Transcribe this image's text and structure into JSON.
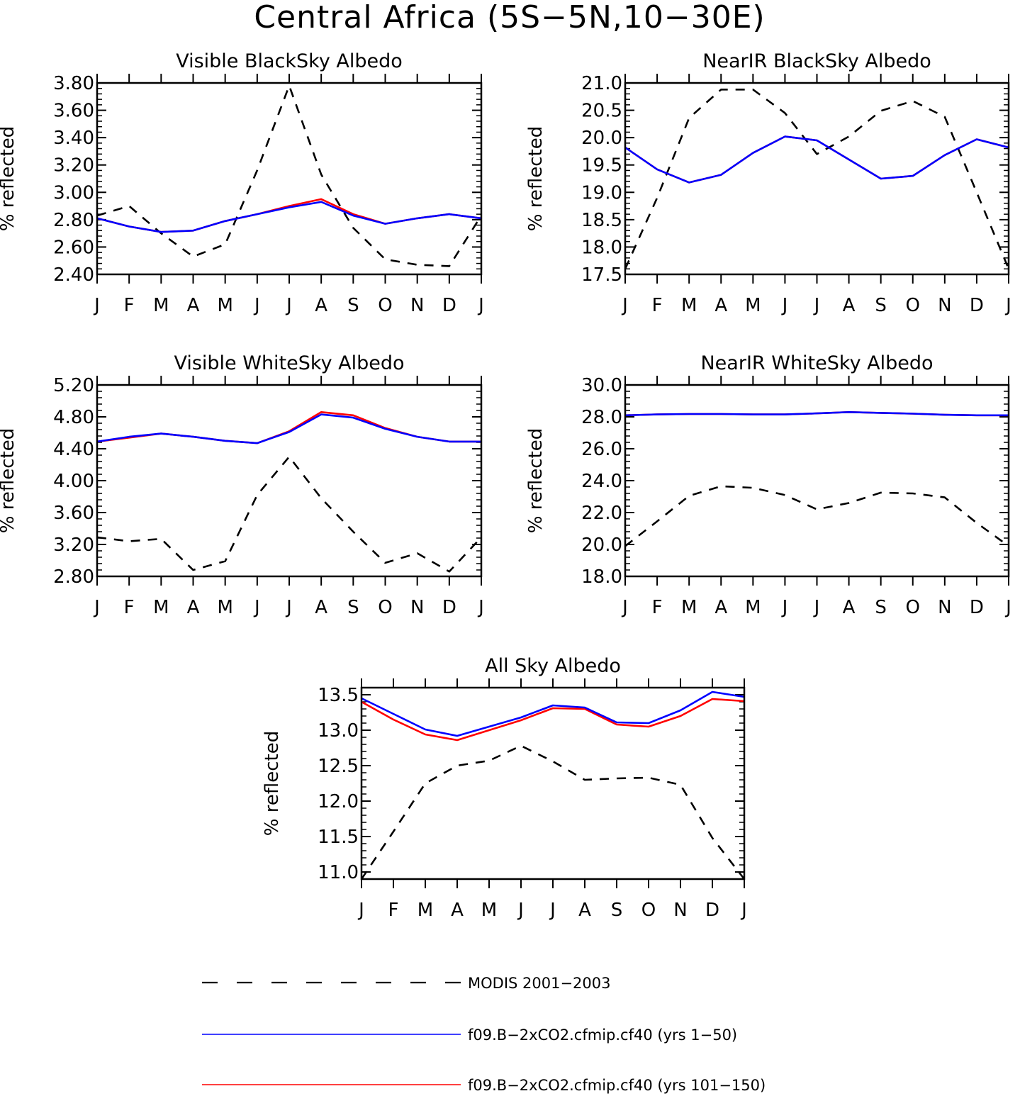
{
  "figure": {
    "title": "Central Africa (5S−5N,10−30E)"
  },
  "colors": {
    "modis": "#000000",
    "run1": "#0000ff",
    "run2": "#ff0000"
  },
  "legend": [
    {
      "label": "MODIS 2001−2003",
      "style": "dashed",
      "color": "#000000"
    },
    {
      "label": "f09.B−2xCO2.cfmip.cf40 (yrs 1−50)",
      "style": "solid",
      "color": "#0000ff"
    },
    {
      "label": "f09.B−2xCO2.cfmip.cf40 (yrs 101−150)",
      "style": "solid",
      "color": "#ff0000"
    }
  ],
  "chart_data": [
    {
      "type": "line",
      "title": "Visible BlackSky Albedo",
      "ylabel": "% reflected",
      "categories": [
        "J",
        "F",
        "M",
        "A",
        "M",
        "J",
        "J",
        "A",
        "S",
        "O",
        "N",
        "D",
        "J"
      ],
      "ylim": [
        2.4,
        3.8
      ],
      "yticks": [
        "2.40",
        "2.60",
        "2.80",
        "3.00",
        "3.20",
        "3.40",
        "3.60",
        "3.80"
      ],
      "series": [
        {
          "name": "MODIS 2001−2003",
          "values": [
            2.83,
            2.9,
            2.7,
            2.53,
            2.62,
            3.16,
            3.78,
            3.13,
            2.74,
            2.51,
            2.47,
            2.46,
            2.83
          ]
        },
        {
          "name": "f09.B−2xCO2.cfmip.cf40 (yrs 1−50)",
          "values": [
            2.81,
            2.75,
            2.71,
            2.72,
            2.79,
            2.84,
            2.89,
            2.93,
            2.83,
            2.77,
            2.81,
            2.84,
            2.81
          ]
        },
        {
          "name": "f09.B−2xCO2.cfmip.cf40 (yrs 101−150)",
          "values": [
            2.81,
            2.75,
            2.71,
            2.72,
            2.79,
            2.84,
            2.9,
            2.95,
            2.84,
            2.77,
            2.81,
            2.84,
            2.81
          ]
        }
      ]
    },
    {
      "type": "line",
      "title": "NearIR BlackSky Albedo",
      "ylabel": "% reflected",
      "categories": [
        "J",
        "F",
        "M",
        "A",
        "M",
        "J",
        "J",
        "A",
        "S",
        "O",
        "N",
        "D",
        "J"
      ],
      "ylim": [
        17.5,
        21.0
      ],
      "yticks": [
        "17.5",
        "18.0",
        "18.5",
        "19.0",
        "19.5",
        "20.0",
        "20.5",
        "21.0"
      ],
      "series": [
        {
          "name": "MODIS 2001−2003",
          "values": [
            17.6,
            18.9,
            20.36,
            20.88,
            20.88,
            20.45,
            19.7,
            20.02,
            20.49,
            20.67,
            20.38,
            19.0,
            17.6
          ]
        },
        {
          "name": "f09.B−2xCO2.cfmip.cf40 (yrs 1−50)",
          "values": [
            19.82,
            19.42,
            19.18,
            19.32,
            19.72,
            20.02,
            19.95,
            19.6,
            19.25,
            19.3,
            19.68,
            19.97,
            19.82
          ]
        },
        {
          "name": "f09.B−2xCO2.cfmip.cf40 (yrs 101−150)",
          "values": [
            19.82,
            19.42,
            19.18,
            19.32,
            19.72,
            20.02,
            19.95,
            19.6,
            19.25,
            19.3,
            19.68,
            19.97,
            19.82
          ]
        }
      ]
    },
    {
      "type": "line",
      "title": "Visible WhiteSky Albedo",
      "ylabel": "% reflected",
      "categories": [
        "J",
        "F",
        "M",
        "A",
        "M",
        "J",
        "J",
        "A",
        "S",
        "O",
        "N",
        "D",
        "J"
      ],
      "ylim": [
        2.8,
        5.2
      ],
      "yticks": [
        "2.80",
        "3.20",
        "3.60",
        "4.00",
        "4.40",
        "4.80",
        "5.20"
      ],
      "series": [
        {
          "name": "MODIS 2001−2003",
          "values": [
            3.29,
            3.24,
            3.27,
            2.88,
            2.99,
            3.82,
            4.3,
            3.78,
            3.36,
            2.97,
            3.09,
            2.86,
            3.29
          ]
        },
        {
          "name": "f09.B−2xCO2.cfmip.cf40 (yrs 1−50)",
          "values": [
            4.49,
            4.55,
            4.59,
            4.55,
            4.5,
            4.47,
            4.61,
            4.83,
            4.79,
            4.65,
            4.55,
            4.49,
            4.49
          ]
        },
        {
          "name": "f09.B−2xCO2.cfmip.cf40 (yrs 101−150)",
          "values": [
            4.49,
            4.54,
            4.59,
            4.55,
            4.5,
            4.47,
            4.62,
            4.86,
            4.82,
            4.66,
            4.55,
            4.49,
            4.49
          ]
        }
      ]
    },
    {
      "type": "line",
      "title": "NearIR WhiteSky Albedo",
      "ylabel": "% reflected",
      "categories": [
        "J",
        "F",
        "M",
        "A",
        "M",
        "J",
        "J",
        "A",
        "S",
        "O",
        "N",
        "D",
        "J"
      ],
      "ylim": [
        18.0,
        30.0
      ],
      "yticks": [
        "18.0",
        "20.0",
        "22.0",
        "24.0",
        "26.0",
        "28.0",
        "30.0"
      ],
      "series": [
        {
          "name": "MODIS 2001−2003",
          "values": [
            19.9,
            21.45,
            23.05,
            23.65,
            23.55,
            23.1,
            22.2,
            22.6,
            23.25,
            23.2,
            22.95,
            21.35,
            19.9
          ]
        },
        {
          "name": "f09.B−2xCO2.cfmip.cf40 (yrs 1−50)",
          "values": [
            28.1,
            28.15,
            28.18,
            28.18,
            28.15,
            28.15,
            28.22,
            28.3,
            28.25,
            28.2,
            28.13,
            28.1,
            28.1
          ]
        },
        {
          "name": "f09.B−2xCO2.cfmip.cf40 (yrs 101−150)",
          "values": [
            28.1,
            28.15,
            28.18,
            28.18,
            28.15,
            28.15,
            28.22,
            28.3,
            28.25,
            28.2,
            28.13,
            28.1,
            28.1
          ]
        }
      ]
    },
    {
      "type": "line",
      "title": "All Sky Albedo",
      "ylabel": "% reflected",
      "categories": [
        "J",
        "F",
        "M",
        "A",
        "M",
        "J",
        "J",
        "A",
        "S",
        "O",
        "N",
        "D",
        "J"
      ],
      "ylim": [
        10.9,
        13.6
      ],
      "yticks": [
        "11.0",
        "11.5",
        "12.0",
        "12.5",
        "13.0",
        "13.5"
      ],
      "series": [
        {
          "name": "MODIS 2001−2003",
          "values": [
            10.9,
            11.57,
            12.25,
            12.5,
            12.57,
            12.78,
            12.56,
            12.3,
            12.32,
            12.33,
            12.23,
            11.48,
            10.9
          ]
        },
        {
          "name": "f09.B−2xCO2.cfmip.cf40 (yrs 1−50)",
          "values": [
            13.45,
            13.23,
            13.01,
            12.92,
            13.05,
            13.18,
            13.35,
            13.32,
            13.11,
            13.1,
            13.28,
            13.54,
            13.47
          ]
        },
        {
          "name": "f09.B−2xCO2.cfmip.cf40 (yrs 101−150)",
          "values": [
            13.4,
            13.15,
            12.94,
            12.86,
            13.0,
            13.14,
            13.31,
            13.3,
            13.08,
            13.05,
            13.2,
            13.44,
            13.41
          ]
        }
      ]
    }
  ]
}
